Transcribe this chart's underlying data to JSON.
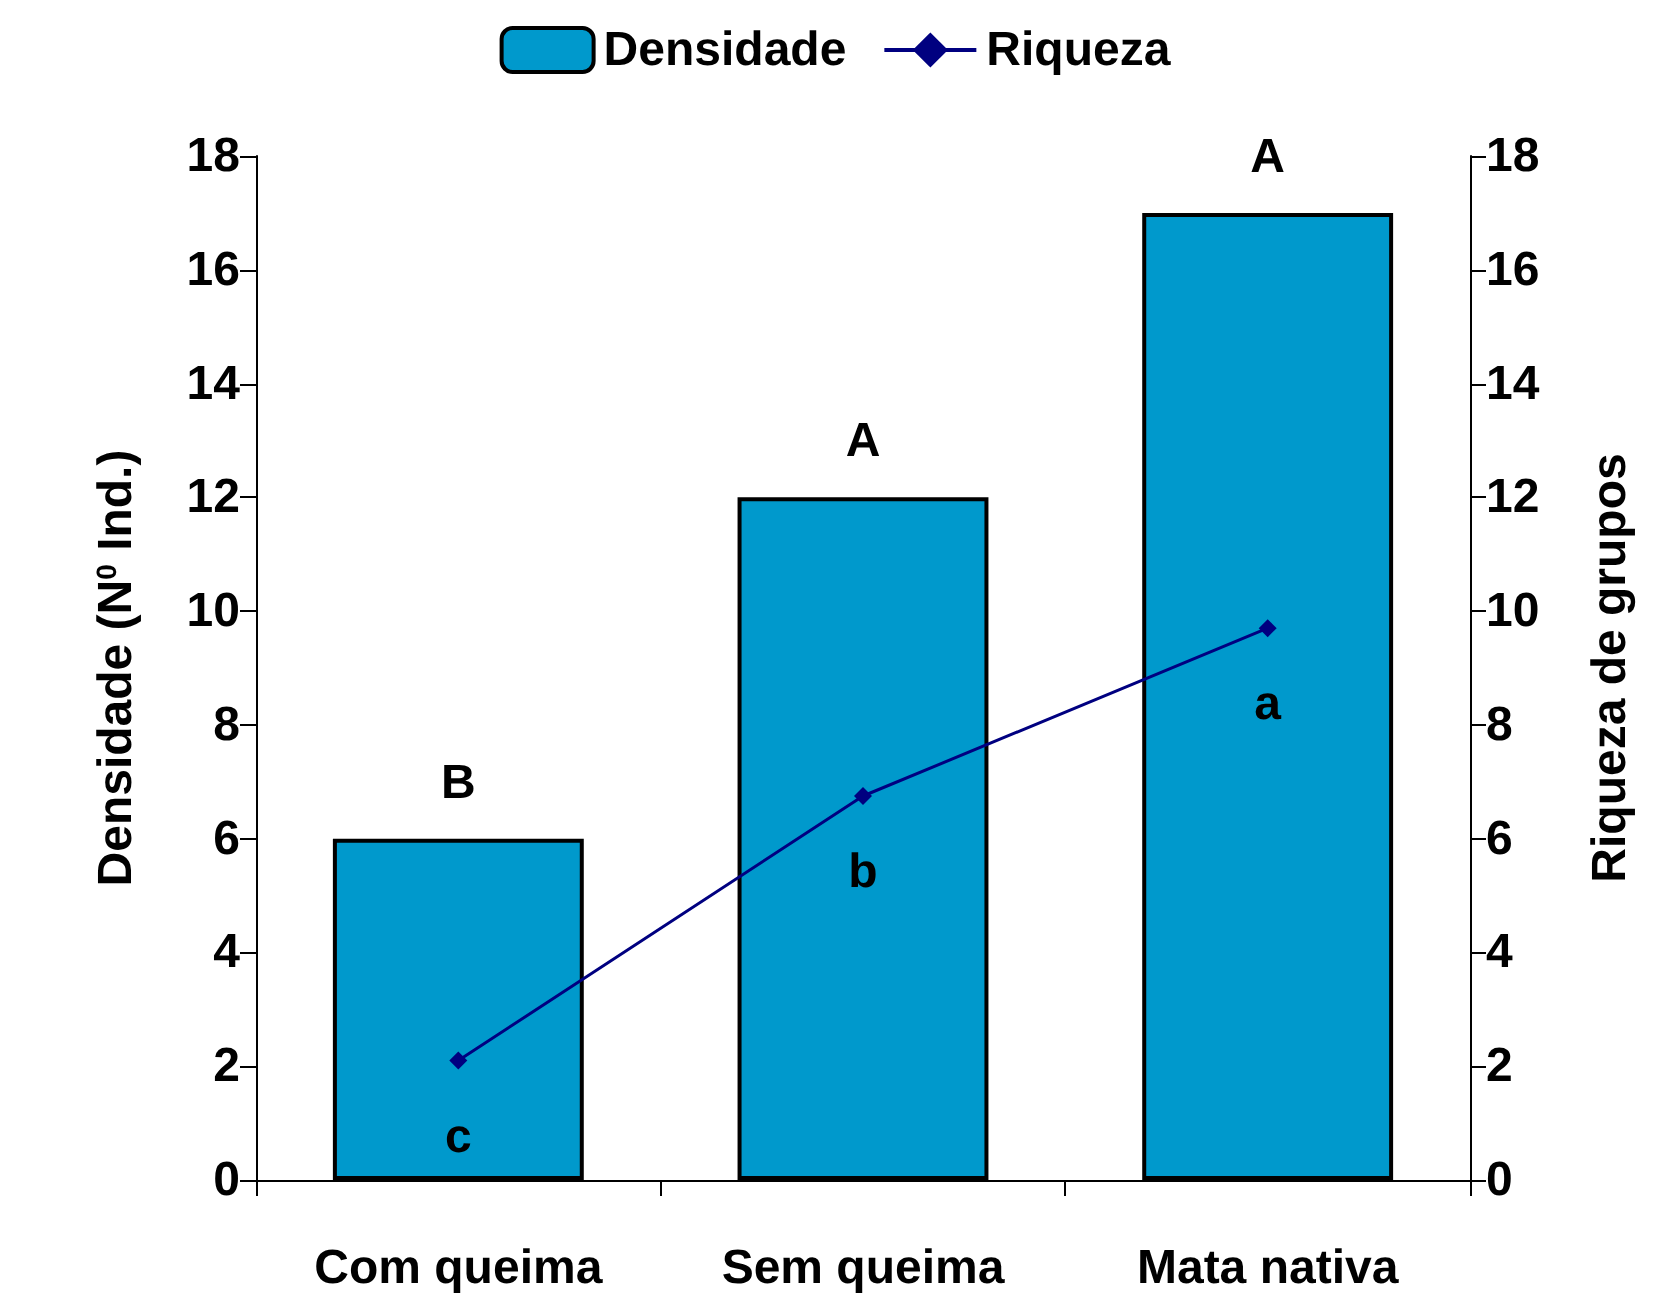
{
  "chart_data": {
    "type": "bar",
    "categories": [
      "Com queima",
      "Sem queima",
      "Mata nativa"
    ],
    "series": [
      {
        "name": "Densidade",
        "color": "#0099cc",
        "values": [
          6,
          12,
          17
        ]
      },
      {
        "name": "Riqueza",
        "type": "line",
        "axis": "y2",
        "color": "#000080",
        "values": [
          2.1,
          6.75,
          9.7
        ]
      }
    ],
    "ylabel": "Densidade (N$^{0}$ Ind.)",
    "y2label": "Riqueza de grupos",
    "ylim": [
      0,
      18
    ],
    "yticks": [
      0,
      2,
      4,
      6,
      8,
      10,
      12,
      14,
      16,
      18
    ],
    "y2lim": [
      0,
      18
    ],
    "y2ticks": [
      0,
      2,
      4,
      6,
      8,
      10,
      12,
      14,
      16,
      18
    ],
    "annotations": [
      {
        "text": "B",
        "x": "Com queima",
        "y": 6
      },
      {
        "text": "A",
        "x": "Sem queima",
        "y": 12
      },
      {
        "text": "A",
        "x": "Mata nativa",
        "y": 17
      },
      {
        "text": "c",
        "x": "Com queima",
        "y": 2.1
      },
      {
        "text": "b",
        "x": "Sem queima",
        "y": 6.75
      },
      {
        "text": "a",
        "x": "Mata nativa",
        "y": 9.7
      }
    ],
    "legend": "top",
    "grid": false,
    "marker": "diamond",
    "line_style": "solid"
  }
}
